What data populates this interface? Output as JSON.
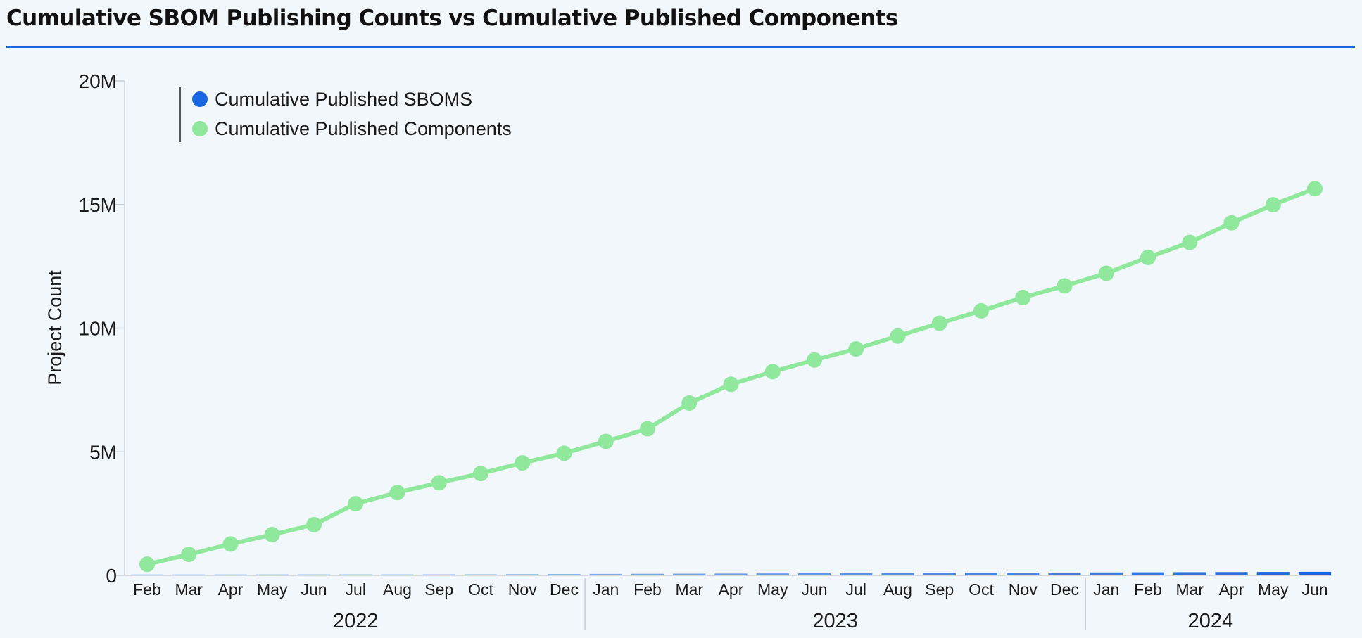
{
  "title": "Cumulative SBOM Publishing Counts vs Cumulative Published Components",
  "colors": {
    "accent_rule": "#1a66e0",
    "sboms": "#1a66e0",
    "components": "#8fe89c",
    "axis": "#c9ced4"
  },
  "chart_data": {
    "type": "line",
    "ylabel": "Project Count",
    "ylim": [
      0,
      20000000
    ],
    "yticks": [
      0,
      5000000,
      10000000,
      15000000,
      20000000
    ],
    "ytick_labels": [
      "0",
      "5M",
      "10M",
      "15M",
      "20M"
    ],
    "legend": {
      "placement": "top-left"
    },
    "x": [
      "Feb",
      "Mar",
      "Apr",
      "May",
      "Jun",
      "Jul",
      "Aug",
      "Sep",
      "Oct",
      "Nov",
      "Dec",
      "Jan",
      "Feb",
      "Mar",
      "Apr",
      "May",
      "Jun",
      "Jul",
      "Aug",
      "Sep",
      "Oct",
      "Nov",
      "Dec",
      "Jan",
      "Feb",
      "Mar",
      "Apr",
      "May",
      "Jun"
    ],
    "year_groups": [
      {
        "label": "2022",
        "start": 0,
        "end": 10
      },
      {
        "label": "2023",
        "start": 11,
        "end": 22
      },
      {
        "label": "2024",
        "start": 23,
        "end": 28
      }
    ],
    "series": [
      {
        "name": "Cumulative Published SBOMS",
        "type": "bar",
        "color": "#1a66e0",
        "values": [
          5000,
          10000,
          15000,
          20000,
          25000,
          30000,
          35000,
          40000,
          45000,
          50000,
          55000,
          60000,
          65000,
          70000,
          75000,
          80000,
          85000,
          90000,
          95000,
          100000,
          105000,
          110000,
          115000,
          120000,
          125000,
          130000,
          135000,
          140000,
          145000
        ]
      },
      {
        "name": "Cumulative Published Components",
        "type": "line",
        "color": "#8fe89c",
        "values": [
          450000,
          850000,
          1270000,
          1650000,
          2050000,
          2900000,
          3350000,
          3750000,
          4120000,
          4550000,
          4940000,
          5420000,
          5930000,
          6970000,
          7730000,
          8240000,
          8710000,
          9160000,
          9680000,
          10200000,
          10700000,
          11240000,
          11710000,
          12220000,
          12860000,
          13470000,
          14260000,
          14990000,
          15640000
        ]
      }
    ]
  }
}
